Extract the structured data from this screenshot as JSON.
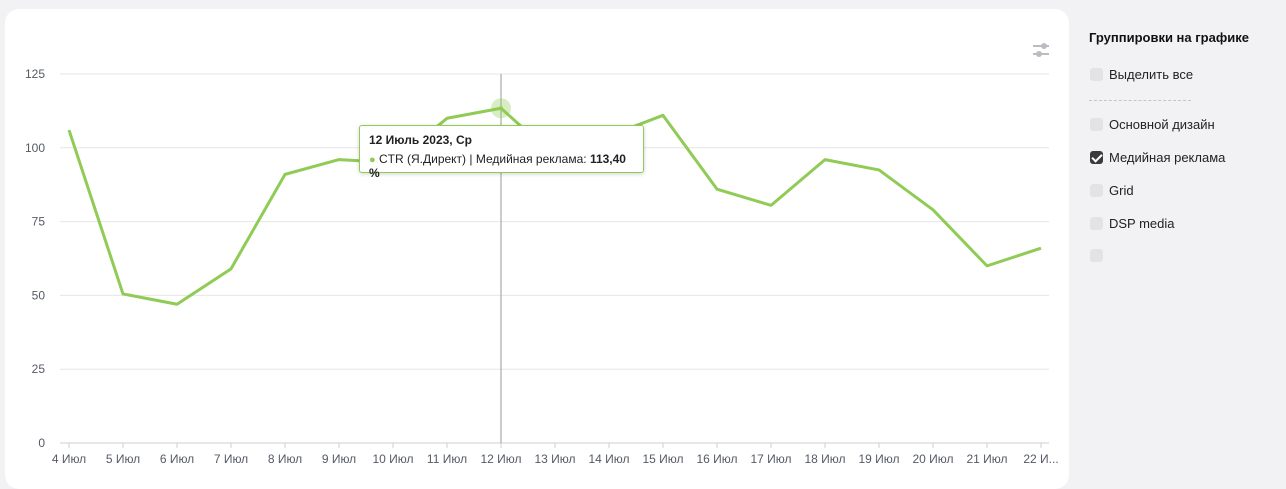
{
  "chart_data": {
    "type": "line",
    "categories": [
      "4 Июл",
      "5 Июл",
      "6 Июл",
      "7 Июл",
      "8 Июл",
      "9 Июл",
      "10 Июл",
      "11 Июл",
      "12 Июл",
      "13 Июл",
      "14 Июл",
      "15 Июл",
      "16 Июл",
      "17 Июл",
      "18 Июл",
      "19 Июл",
      "20 Июл",
      "21 Июл",
      "22 И..."
    ],
    "series": [
      {
        "name": "Медийная реклама",
        "color": "#8fcb55",
        "values": [
          106,
          50.5,
          47,
          59,
          91,
          96,
          95,
          110,
          113.4,
          97,
          104,
          111,
          86,
          80.5,
          96,
          92.5,
          79,
          60,
          66
        ]
      }
    ],
    "ylim": [
      0,
      125
    ],
    "yticks": [
      "0",
      "25",
      "50",
      "75",
      "100",
      "125"
    ],
    "grid": true,
    "tooltip": {
      "date": "12 Июль 2023, Ср",
      "label": "CTR (Я.Директ) | Медийная реклама:",
      "value": "113,40 %",
      "index": 8
    }
  },
  "sidebar": {
    "title": "Группировки на графике",
    "select_all": {
      "label": "Выделить все",
      "checked": false
    },
    "options": [
      {
        "label": "Основной дизайн",
        "checked": false
      },
      {
        "label": "Медийная реклама",
        "checked": true
      },
      {
        "label": "Grid",
        "checked": false
      },
      {
        "label": "DSP media",
        "checked": false
      },
      {
        "label": "",
        "checked": false
      }
    ]
  },
  "icons": {
    "settings": "sliders-icon"
  }
}
